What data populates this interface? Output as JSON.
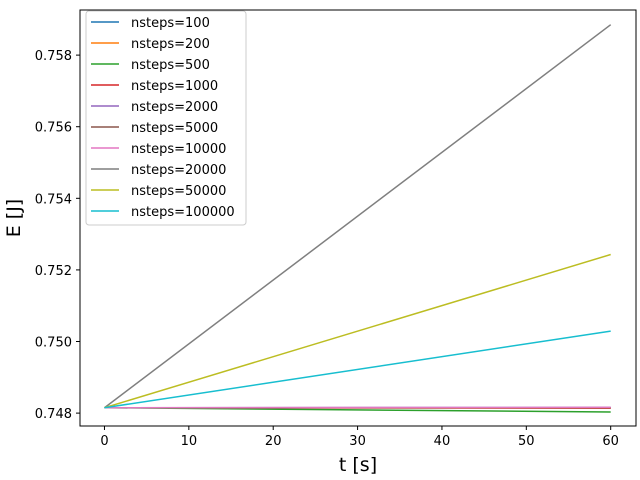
{
  "chart_data": {
    "type": "line",
    "title": "",
    "xlabel": "t [s]",
    "ylabel": "E [J]",
    "xlim": [
      -2.9,
      63.0
    ],
    "ylim": [
      0.74764,
      0.75926
    ],
    "xticks": [
      0,
      10,
      20,
      30,
      40,
      50,
      60
    ],
    "yticks": [
      0.748,
      0.75,
      0.752,
      0.754,
      0.756,
      0.758
    ],
    "ytick_labels": [
      "0.748",
      "0.750",
      "0.752",
      "0.754",
      "0.756",
      "0.758"
    ],
    "grid": false,
    "legend_position": "top-left",
    "series": [
      {
        "name": "nsteps=100",
        "color": "#1f77b4",
        "x": [
          0,
          60
        ],
        "y": [
          0.74815,
          0.74815
        ]
      },
      {
        "name": "nsteps=200",
        "color": "#ff7f0e",
        "x": [
          0,
          60
        ],
        "y": [
          0.74815,
          0.74814
        ]
      },
      {
        "name": "nsteps=500",
        "color": "#2ca02c",
        "x": [
          0,
          60
        ],
        "y": [
          0.74815,
          0.74803
        ]
      },
      {
        "name": "nsteps=1000",
        "color": "#d62728",
        "x": [
          0,
          60
        ],
        "y": [
          0.74815,
          0.74814
        ]
      },
      {
        "name": "nsteps=2000",
        "color": "#9467bd",
        "x": [
          0,
          60
        ],
        "y": [
          0.74815,
          0.74816
        ]
      },
      {
        "name": "nsteps=5000",
        "color": "#8c564b",
        "x": [
          0,
          60
        ],
        "y": [
          0.74815,
          0.74815
        ]
      },
      {
        "name": "nsteps=10000",
        "color": "#e377c2",
        "x": [
          0,
          60
        ],
        "y": [
          0.74815,
          0.74816
        ]
      },
      {
        "name": "nsteps=20000",
        "color": "#7f7f7f",
        "x": [
          0,
          60
        ],
        "y": [
          0.74815,
          0.75885
        ]
      },
      {
        "name": "nsteps=50000",
        "color": "#bcbd22",
        "x": [
          0,
          60
        ],
        "y": [
          0.74815,
          0.75243
        ]
      },
      {
        "name": "nsteps=100000",
        "color": "#17becf",
        "x": [
          0,
          60
        ],
        "y": [
          0.74815,
          0.75029
        ]
      }
    ]
  }
}
